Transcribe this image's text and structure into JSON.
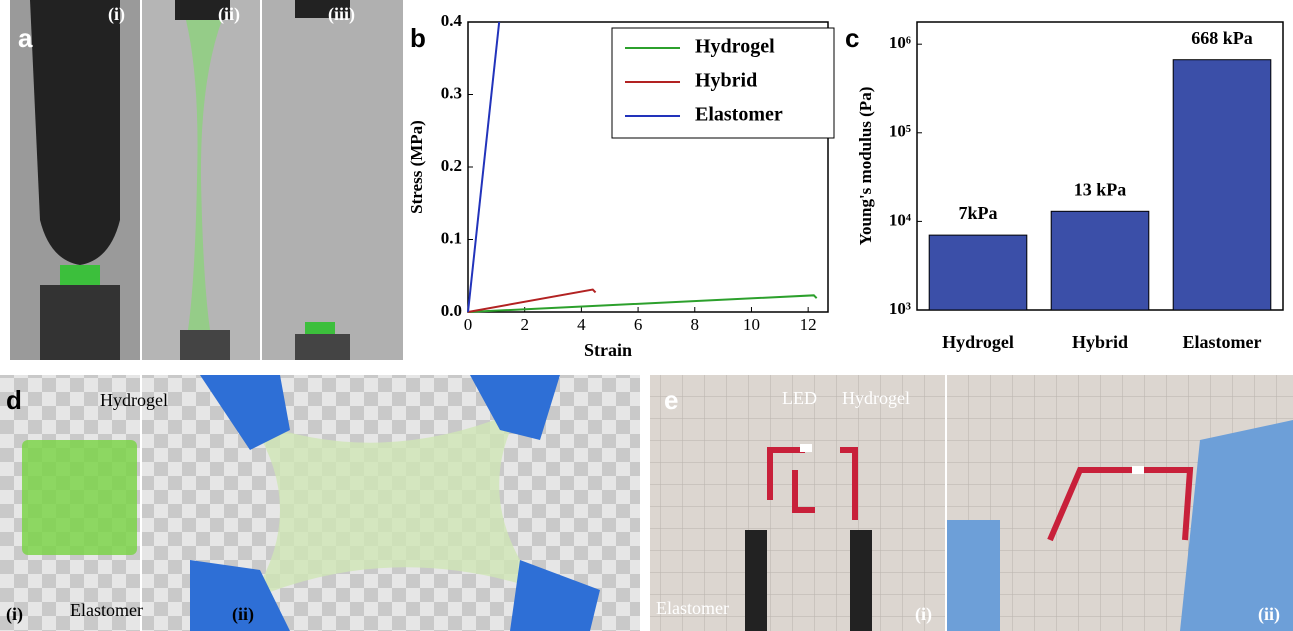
{
  "panels": {
    "a": {
      "label": "a",
      "subs": [
        "(i)",
        "(ii)",
        "(iii)"
      ]
    },
    "b": {
      "label": "b"
    },
    "c": {
      "label": "c"
    },
    "d": {
      "label": "d",
      "hydrogel": "Hydrogel",
      "elastomer": "Elastomer",
      "subs": [
        "(i)",
        "(ii)"
      ]
    },
    "e": {
      "label": "e",
      "led": "LED",
      "hydrogel": "Hydrogel",
      "elastomer": "Elastomer",
      "subs": [
        "(i)",
        "(ii)"
      ]
    }
  },
  "chart_data": [
    {
      "type": "line",
      "xlabel": "Strain",
      "ylabel": "Stress (MPa)",
      "xlim": [
        0,
        12.7
      ],
      "xticks": [
        0,
        2,
        4,
        6,
        8,
        10,
        12
      ],
      "ylim": [
        0,
        0.4
      ],
      "yticks": [
        {
          "value": 0,
          "label": "0.0"
        },
        0.1,
        0.2,
        0.3,
        0.4
      ],
      "series": [
        {
          "name": "Hydrogel",
          "color": "#2ca02c",
          "x": [
            0,
            12.2,
            12.3
          ],
          "values": [
            0,
            0.023,
            0.019
          ]
        },
        {
          "name": "Hybrid",
          "color": "#b22222",
          "x": [
            0,
            4.4,
            4.5
          ],
          "values": [
            0,
            0.031,
            0.027
          ]
        },
        {
          "name": "Elastomer",
          "color": "#2233bb",
          "x": [
            0,
            1.1
          ],
          "values": [
            0,
            0.4
          ]
        }
      ]
    },
    {
      "type": "bar",
      "ylabel": "Young's modulus (Pa)",
      "log_scale": true,
      "color": "#3b4fa8",
      "categories": [
        "Hydrogel",
        "Hybrid",
        "Elastomer"
      ],
      "values": [
        7000,
        13000,
        668000
      ],
      "value_labels": [
        "7kPa",
        "13 kPa",
        "668 kPa"
      ],
      "ylim": [
        1000,
        1780000
      ],
      "yticks": [
        {
          "value": 1000,
          "label": "10³"
        },
        {
          "value": 10000,
          "label": "10⁴"
        },
        {
          "value": 100000,
          "label": "10⁵"
        },
        {
          "value": 1000000,
          "label": "10⁶"
        }
      ]
    }
  ]
}
